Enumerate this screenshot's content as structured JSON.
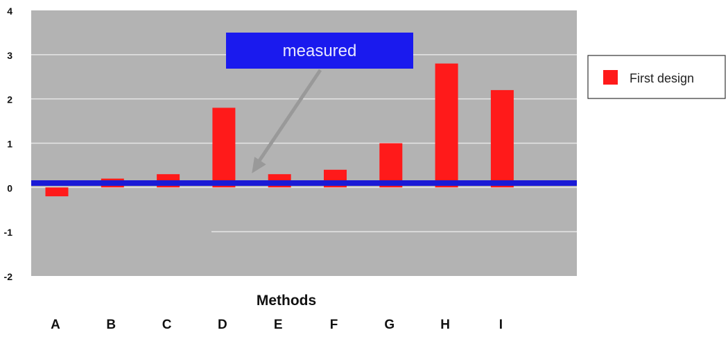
{
  "chart_data": {
    "type": "bar",
    "xlabel": "Methods",
    "ylabel": "",
    "categories": [
      "A",
      "B",
      "C",
      "D",
      "E",
      "F",
      "G",
      "H",
      "I"
    ],
    "series": [
      {
        "name": "First design",
        "values": [
          -0.2,
          0.2,
          0.3,
          1.8,
          0.3,
          0.4,
          1.0,
          2.8,
          2.2
        ],
        "color": "#ff1a1a"
      }
    ],
    "ylim": [
      -2,
      4
    ],
    "yticks": [
      "4",
      "3",
      "2",
      "1",
      "0",
      "-1",
      "-2"
    ],
    "grid": true,
    "plot_background": "#b3b3b3",
    "gridline_color": "#e6e6e6",
    "reference_line": {
      "value": 0.1,
      "color": "#1a1ad6"
    },
    "annotation": {
      "text": "measured",
      "box_color": "#1a1aee",
      "text_color": "#e8e8ff",
      "arrow_color": "#999999",
      "points_to_category": "E"
    },
    "legend": {
      "placement": "right",
      "entries": [
        "First design"
      ]
    }
  }
}
